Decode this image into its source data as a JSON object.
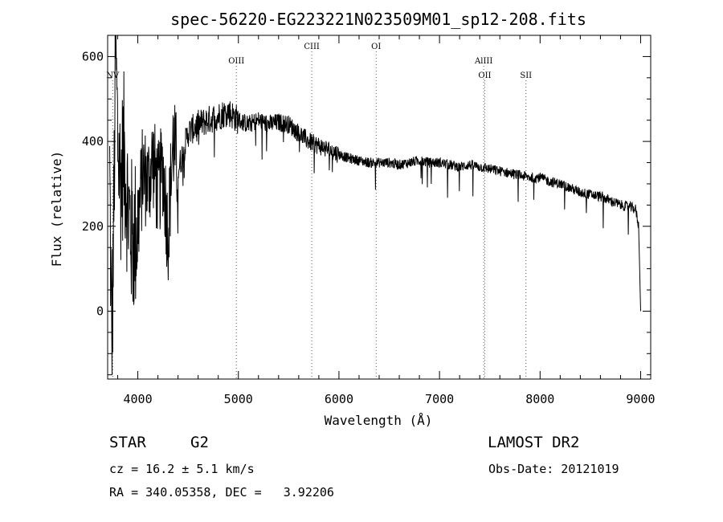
{
  "chart_data": {
    "type": "line",
    "title": "spec-56220-EG223221N023509M01_sp12-208.fits",
    "xlabel": "Wavelength (Å)",
    "ylabel": "Flux (relative)",
    "xlim": [
      3700,
      9100
    ],
    "ylim": [
      -160,
      650
    ],
    "x_ticks": [
      4000,
      5000,
      6000,
      7000,
      8000,
      9000
    ],
    "y_ticks": [
      0,
      200,
      400,
      600
    ],
    "line_marks": [
      {
        "label": "NV",
        "x": 3750,
        "tier": 2
      },
      {
        "label": "OIII",
        "x": 4980,
        "tier": 1
      },
      {
        "label": "CIII",
        "x": 5730,
        "tier": 0
      },
      {
        "label": "OI",
        "x": 6370,
        "tier": 0
      },
      {
        "label": "AlIII",
        "x": 7440,
        "tier": 1
      },
      {
        "label": "OII",
        "x": 7450,
        "tier": 2
      },
      {
        "label": "SII",
        "x": 7860,
        "tier": 2
      }
    ],
    "series": [
      {
        "name": "flux",
        "x": [
          3720,
          3740,
          3760,
          3780,
          3800,
          3830,
          3860,
          3900,
          3950,
          4000,
          4050,
          4100,
          4150,
          4200,
          4250,
          4300,
          4350,
          4400,
          4500,
          4600,
          4700,
          4800,
          4900,
          5000,
          5100,
          5200,
          5300,
          5400,
          5500,
          5600,
          5700,
          5800,
          5900,
          6000,
          6100,
          6200,
          6300,
          6400,
          6500,
          6600,
          6700,
          6800,
          6900,
          7000,
          7100,
          7200,
          7300,
          7400,
          7500,
          7600,
          7700,
          7800,
          7900,
          8000,
          8100,
          8200,
          8300,
          8400,
          8500,
          8600,
          8700,
          8800,
          8900,
          8950,
          8980,
          9000
        ],
        "values": [
          330,
          -100,
          200,
          620,
          400,
          300,
          380,
          250,
          160,
          200,
          330,
          300,
          360,
          280,
          340,
          180,
          400,
          330,
          420,
          440,
          450,
          460,
          470,
          450,
          440,
          450,
          440,
          445,
          440,
          420,
          400,
          390,
          380,
          370,
          360,
          355,
          350,
          350,
          350,
          345,
          350,
          355,
          350,
          350,
          345,
          340,
          345,
          340,
          335,
          330,
          325,
          320,
          315,
          315,
          305,
          300,
          290,
          280,
          275,
          270,
          260,
          250,
          245,
          240,
          200,
          0
        ]
      }
    ]
  },
  "info": {
    "object_class": "STAR",
    "subclass": "G2",
    "survey": "LAMOST DR2",
    "cz": "cz = 16.2 ± 5.1 km/s",
    "obs_date": "Obs-Date: 20121019",
    "coords": "RA = 340.05358, DEC =   3.92206"
  }
}
